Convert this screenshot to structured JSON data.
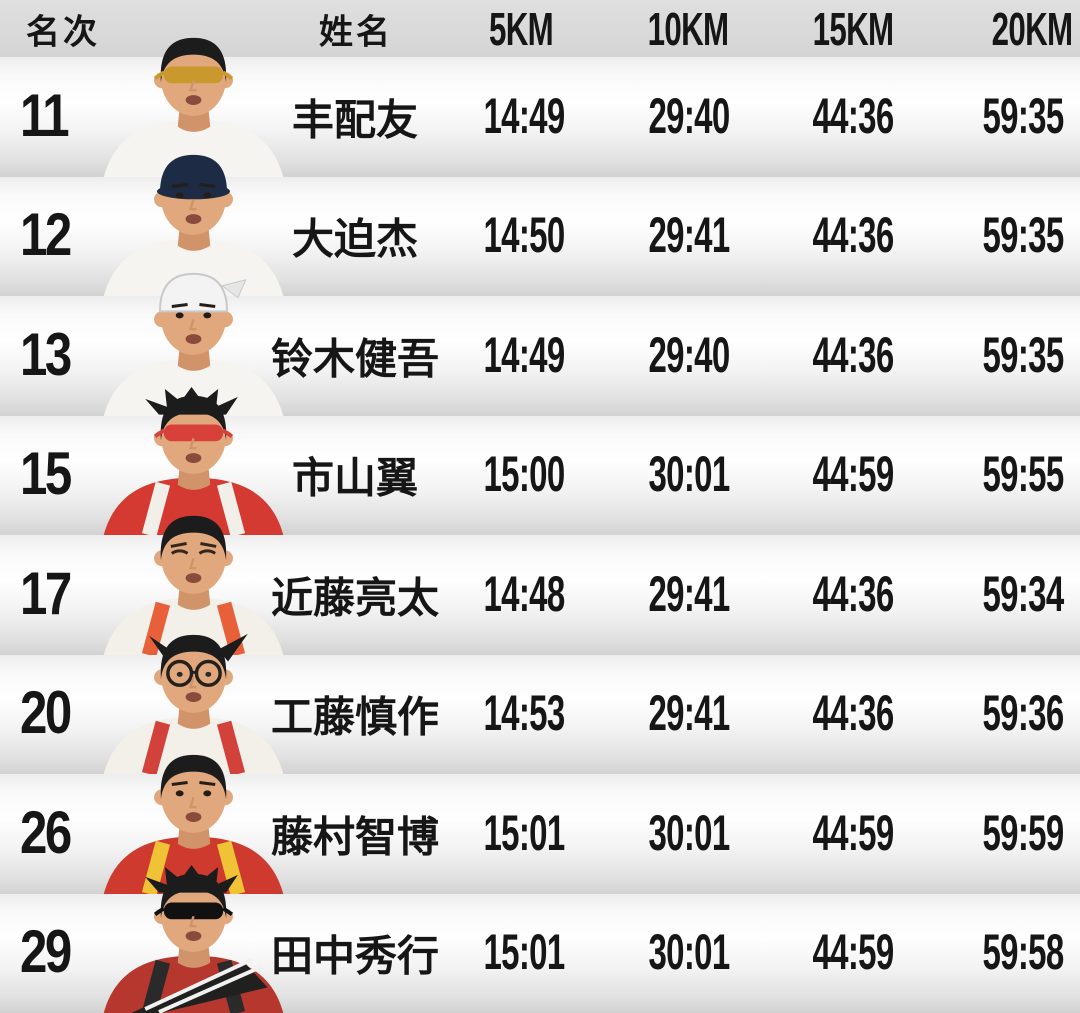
{
  "chart_data": {
    "type": "table",
    "columns": [
      "名次",
      "姓名",
      "5KM",
      "10KM",
      "15KM",
      "20KM"
    ],
    "rows": [
      {
        "rank": "11",
        "name": "丰配友",
        "k5": "14:49",
        "k10": "29:40",
        "k15": "44:36",
        "k20": "59:35"
      },
      {
        "rank": "12",
        "name": "大迫杰",
        "k5": "14:50",
        "k10": "29:41",
        "k15": "44:36",
        "k20": "59:35"
      },
      {
        "rank": "13",
        "name": "铃木健吾",
        "k5": "14:49",
        "k10": "29:40",
        "k15": "44:36",
        "k20": "59:35"
      },
      {
        "rank": "15",
        "name": "市山翼",
        "k5": "15:00",
        "k10": "30:01",
        "k15": "44:59",
        "k20": "59:55"
      },
      {
        "rank": "17",
        "name": "近藤亮太",
        "k5": "14:48",
        "k10": "29:41",
        "k15": "44:36",
        "k20": "59:34"
      },
      {
        "rank": "20",
        "name": "工藤慎作",
        "k5": "14:53",
        "k10": "29:41",
        "k15": "44:36",
        "k20": "59:36"
      },
      {
        "rank": "26",
        "name": "藤村智博",
        "k5": "15:01",
        "k10": "30:01",
        "k15": "44:59",
        "k20": "59:59"
      },
      {
        "rank": "29",
        "name": "田中秀行",
        "k5": "15:01",
        "k10": "30:01",
        "k15": "44:59",
        "k20": "59:58"
      }
    ],
    "title": "",
    "layout": {
      "grid": false,
      "header_row": true
    }
  },
  "colors": {
    "header_bg": "#d9d9d9",
    "row_gradient_top": "#ededed",
    "row_gradient_mid": "#fefefe",
    "row_gradient_bottom": "#d2d2d2",
    "text": "#161616"
  },
  "photo_defaults": {
    "skin": "#e2a87d",
    "skin_shade": "#d1946a",
    "hair_color": "#1c1c1c"
  },
  "photos": [
    {
      "desc": "runner with gold sunglasses and white singlet",
      "hair": "short",
      "cap": "none",
      "eyewear": "shades",
      "eyewear_color": "#c9992e",
      "singlet": "#f6f4f0",
      "strap": "",
      "sash": false
    },
    {
      "desc": "runner wearing navy cap and white singlet",
      "hair": "none",
      "cap": "navy",
      "cap_color": "#1d2b45",
      "eyewear": "eyes",
      "singlet": "#f6f4f0",
      "strap": "",
      "sash": false
    },
    {
      "desc": "runner with backwards white cap, gritted teeth, white singlet",
      "hair": "none",
      "cap": "white-back",
      "eyewear": "eyes",
      "singlet": "#f6f4f0",
      "strap": "",
      "sash": false
    },
    {
      "desc": "runner with messy hair and red mirrored sunglasses, red singlet with white straps",
      "hair": "spiky",
      "cap": "none",
      "eyewear": "shades",
      "eyewear_color": "#d8403a",
      "singlet": "#d43a31",
      "strap": "#f2efe9",
      "sash": false
    },
    {
      "desc": "grimacing runner with short hair, white singlet with orange straps",
      "hair": "short",
      "cap": "none",
      "eyewear": "squint",
      "singlet": "#f3f0ea",
      "strap": "#e8603a",
      "sash": false
    },
    {
      "desc": "runner with round glasses and windswept hair, white singlet with red trim",
      "hair": "swept",
      "cap": "none",
      "eyewear": "glasses",
      "singlet": "#f3f0ea",
      "strap": "#d2423a",
      "sash": false
    },
    {
      "desc": "runner with short hair, red singlet with yellow trim",
      "hair": "short",
      "cap": "none",
      "eyewear": "eyes",
      "singlet": "#cf3a2f",
      "strap": "#f0c235",
      "sash": false
    },
    {
      "desc": "runner with black sunglasses and spiky hair, dark red singlet with striped sash",
      "hair": "spiky",
      "cap": "none",
      "eyewear": "shades",
      "eyewear_color": "#111111",
      "singlet": "#b5372e",
      "strap": "#2a2a2a",
      "sash": true
    }
  ]
}
